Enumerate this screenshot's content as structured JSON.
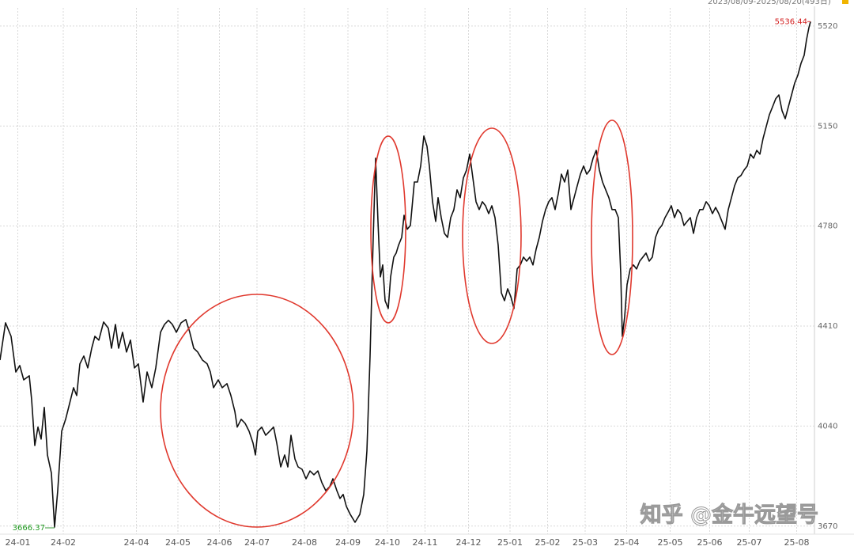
{
  "chart_data": {
    "type": "line",
    "range_label": "2023/08/09-2025/08/20(493日)",
    "watermark": "知乎 @金牛远望号",
    "color": "#111111",
    "grid": true,
    "xlim": [
      0,
      412
    ],
    "ylim": [
      3640,
      5587
    ],
    "yticks": [
      3670,
      4040,
      4410,
      4780,
      5150,
      5520
    ],
    "xticks": [
      {
        "value": 9,
        "label": "24-01"
      },
      {
        "value": 32,
        "label": "24-02"
      },
      {
        "value": 69,
        "label": "24-04"
      },
      {
        "value": 90,
        "label": "24-05"
      },
      {
        "value": 111,
        "label": "24-06"
      },
      {
        "value": 130,
        "label": "24-07"
      },
      {
        "value": 154,
        "label": "24-08"
      },
      {
        "value": 176,
        "label": "24-09"
      },
      {
        "value": 196,
        "label": "24-10"
      },
      {
        "value": 215,
        "label": "24-11"
      },
      {
        "value": 237,
        "label": "24-12"
      },
      {
        "value": 258,
        "label": "25-01"
      },
      {
        "value": 277,
        "label": "25-02"
      },
      {
        "value": 296,
        "label": "25-03"
      },
      {
        "value": 317,
        "label": "25-04"
      },
      {
        "value": 339,
        "label": "25-05"
      },
      {
        "value": 359,
        "label": "25-06"
      },
      {
        "value": 379,
        "label": "25-07"
      },
      {
        "value": 403,
        "label": "25-08"
      }
    ],
    "x": [
      0,
      2.8,
      5.6,
      8,
      10,
      12,
      14.8,
      16,
      17.6,
      19.2,
      20.8,
      22.4,
      24,
      26,
      27.6,
      29.2,
      31.2,
      33.2,
      35.2,
      37.2,
      38.8,
      40.4,
      42.4,
      44.4,
      46.4,
      48,
      50,
      52.4,
      54.8,
      56.4,
      58.4,
      60,
      62,
      64,
      66,
      68,
      70,
      72.4,
      74.4,
      76.8,
      78.8,
      81.2,
      83.2,
      85.2,
      87.2,
      89.2,
      91.6,
      94,
      96,
      98,
      100,
      102.4,
      104.8,
      106.4,
      108,
      110.4,
      112.4,
      114.8,
      116.8,
      118.8,
      120,
      122,
      124,
      126,
      128,
      129.2,
      130.4,
      132.4,
      134.4,
      136.4,
      138.4,
      140,
      142,
      144,
      145.6,
      147.2,
      149.2,
      150.8,
      152.8,
      154.8,
      156.8,
      158.8,
      160.8,
      162.8,
      164.8,
      166.8,
      168.4,
      170.4,
      172,
      173.6,
      175.2,
      177.2,
      179.6,
      182,
      184,
      185.6,
      187.2,
      188.8,
      190,
      191.2,
      192.4,
      193.6,
      194.8,
      196.4,
      197.6,
      199.2,
      200.4,
      201.6,
      203.2,
      204.4,
      206,
      207.6,
      209.6,
      211.2,
      212.8,
      214.4,
      216,
      217.2,
      218.8,
      220.4,
      221.6,
      223.2,
      224.8,
      226.4,
      228,
      229.6,
      231.2,
      232.8,
      234.4,
      236,
      237.6,
      239.2,
      240.8,
      242.4,
      244,
      245.6,
      247.2,
      248.8,
      250.4,
      252,
      253.6,
      255.2,
      256.8,
      258.4,
      260,
      261.6,
      263.2,
      264.8,
      266.4,
      268,
      269.6,
      271.2,
      272.8,
      274.4,
      276,
      277.6,
      279.2,
      280.8,
      282.4,
      284,
      285.6,
      287.2,
      288.8,
      290.4,
      292,
      293.6,
      295.2,
      296.8,
      298.4,
      300,
      301.6,
      303.2,
      304.8,
      306.4,
      308,
      309.6,
      311.2,
      312.8,
      314,
      314.8,
      316,
      317.2,
      318.8,
      320.4,
      322,
      323.6,
      325.2,
      326.8,
      328.4,
      330,
      331.6,
      333.2,
      334.8,
      336.4,
      338,
      339.6,
      341.2,
      342.8,
      344.4,
      346,
      347.6,
      349.2,
      350.8,
      352.4,
      354,
      355.6,
      357.2,
      358.8,
      360.4,
      362,
      363.6,
      365.2,
      366.8,
      368.4,
      370,
      371.6,
      373.2,
      374.8,
      376.4,
      378,
      379.6,
      381.2,
      382.8,
      384.4,
      386,
      387.6,
      389.2,
      390.8,
      392.4,
      394,
      395.6,
      397.2,
      398.8,
      400.4,
      402,
      403.6,
      405.2,
      406.8,
      408,
      409.2,
      410
    ],
    "values": [
      4284,
      4422,
      4372,
      4240,
      4264,
      4211,
      4226,
      4138,
      3968,
      4036,
      3992,
      4109,
      3933,
      3866,
      3666.37,
      3801,
      4021,
      4065,
      4123,
      4182,
      4153,
      4270,
      4299,
      4255,
      4328,
      4372,
      4358,
      4425,
      4402,
      4328,
      4416,
      4328,
      4387,
      4314,
      4358,
      4255,
      4270,
      4129,
      4240,
      4182,
      4255,
      4387,
      4416,
      4431,
      4416,
      4387,
      4422,
      4434,
      4387,
      4328,
      4314,
      4284,
      4270,
      4240,
      4182,
      4211,
      4182,
      4197,
      4153,
      4094,
      4036,
      4065,
      4050,
      4021,
      3977,
      3933,
      4021,
      4036,
      4006,
      4021,
      4036,
      3977,
      3889,
      3933,
      3889,
      4006,
      3918,
      3889,
      3880,
      3845,
      3874,
      3860,
      3874,
      3831,
      3801,
      3816,
      3845,
      3801,
      3772,
      3787,
      3743,
      3713,
      3684,
      3713,
      3787,
      3948,
      4299,
      4738,
      5031,
      4797,
      4592,
      4636,
      4504,
      4475,
      4592,
      4665,
      4680,
      4709,
      4738,
      4820,
      4768,
      4782,
      4943,
      4943,
      5002,
      5113,
      5075,
      5002,
      4870,
      4797,
      4885,
      4811,
      4753,
      4738,
      4811,
      4841,
      4914,
      4885,
      4958,
      4987,
      5046,
      4958,
      4870,
      4841,
      4870,
      4855,
      4826,
      4855,
      4811,
      4709,
      4533,
      4504,
      4548,
      4519,
      4475,
      4621,
      4636,
      4665,
      4650,
      4665,
      4636,
      4694,
      4738,
      4797,
      4841,
      4870,
      4885,
      4841,
      4899,
      4972,
      4943,
      4987,
      4841,
      4885,
      4929,
      4972,
      5002,
      4972,
      4987,
      5031,
      5060,
      4987,
      4943,
      4914,
      4885,
      4841,
      4841,
      4811,
      4606,
      4372,
      4445,
      4563,
      4621,
      4636,
      4621,
      4650,
      4665,
      4680,
      4650,
      4665,
      4738,
      4768,
      4782,
      4811,
      4832,
      4855,
      4811,
      4841,
      4826,
      4782,
      4797,
      4811,
      4753,
      4811,
      4841,
      4841,
      4870,
      4855,
      4826,
      4849,
      4826,
      4797,
      4768,
      4841,
      4885,
      4929,
      4958,
      4967,
      4987,
      5002,
      5046,
      5031,
      5060,
      5046,
      5104,
      5148,
      5192,
      5221,
      5251,
      5265,
      5207,
      5177,
      5221,
      5265,
      5309,
      5338,
      5382,
      5412,
      5470,
      5514,
      5536.44
    ]
  }
}
